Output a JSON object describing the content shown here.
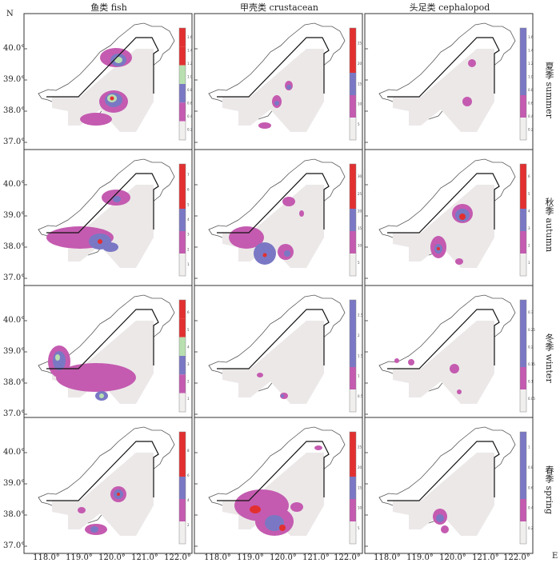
{
  "columns": [
    {
      "label": "鱼类 fish"
    },
    {
      "label": "甲壳类 crustacean"
    },
    {
      "label": "头足类 cephalopod"
    }
  ],
  "rows": [
    {
      "label": "夏季 summer"
    },
    {
      "label": "秋季 autumn"
    },
    {
      "label": "冬季 winter"
    },
    {
      "label": "春季 spring"
    }
  ],
  "axes": {
    "north_label": "N",
    "east_label": "E",
    "latitudes": [
      "40.0°",
      "39.0°",
      "38.0°",
      "37.0°"
    ],
    "longitudes": [
      "118.0°",
      "119.0°",
      "120.0°",
      "121.0°",
      "122.0°"
    ]
  },
  "colors": {
    "background": "#ece8e8",
    "magenta": "#c45bb0",
    "blue": "#7a78c4",
    "green": "#b8dfb0",
    "red": "#e23030",
    "light": "#f1eeee"
  },
  "legend_tick_labels": [
    [
      "1.6",
      "1.4",
      "1.2",
      "1.0",
      "0.8",
      "0.6",
      "0.4",
      "0.2"
    ],
    [
      "25",
      "20",
      "15",
      "10",
      "5"
    ],
    [
      "1.6",
      "1.4",
      "1.2",
      "1.0",
      "0.8",
      "0.6",
      "0.4",
      "0.2"
    ],
    [
      "7",
      "6",
      "5",
      "4",
      "3",
      "2",
      "1"
    ],
    [
      "30",
      "25",
      "20",
      "15",
      "10",
      "5"
    ],
    [
      "6",
      "5",
      "4",
      "3",
      "2",
      "1"
    ],
    [
      "6",
      "5",
      "4",
      "3",
      "2",
      "1"
    ],
    [
      "2.5",
      "2",
      "1.5",
      "1",
      "0.5"
    ],
    [
      "0.3",
      "0.25",
      "0.2",
      "0.15",
      "0.1",
      "0.05"
    ],
    [
      "8",
      "6",
      "4",
      "2"
    ],
    [
      "25",
      "20",
      "15",
      "10",
      "5"
    ],
    [
      "1",
      "0.8",
      "0.6",
      "0.4",
      "0.2"
    ]
  ]
}
